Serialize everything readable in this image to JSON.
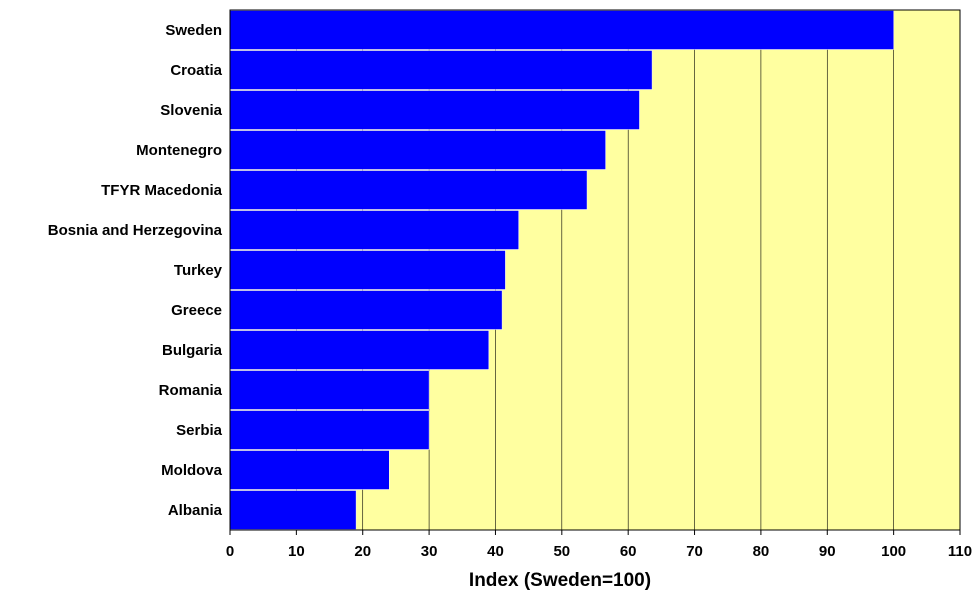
{
  "chart_data": {
    "type": "bar",
    "orientation": "horizontal",
    "categories": [
      "Sweden",
      "Croatia",
      "Slovenia",
      "Montenegro",
      "TFYR Macedonia",
      "Bosnia and Herzegovina",
      "Turkey",
      "Greece",
      "Bulgaria",
      "Romania",
      "Serbia",
      "Moldova",
      "Albania"
    ],
    "values": [
      100,
      63.6,
      61.7,
      56.6,
      53.8,
      43.5,
      41.5,
      41,
      39,
      30,
      30,
      24,
      19
    ],
    "title": "",
    "xlabel": "Index (Sweden=100)",
    "ylabel": "",
    "xlim": [
      0,
      110
    ],
    "xticks": [
      "0",
      "10",
      "20",
      "30",
      "40",
      "50",
      "60",
      "70",
      "80",
      "90",
      "100",
      "110"
    ],
    "grid": "vertical",
    "legend": "none",
    "colors": {
      "bar": "#0000FF",
      "plot_background": "#FFFFA0",
      "gridline": "#000000",
      "frame": "#000000"
    }
  }
}
